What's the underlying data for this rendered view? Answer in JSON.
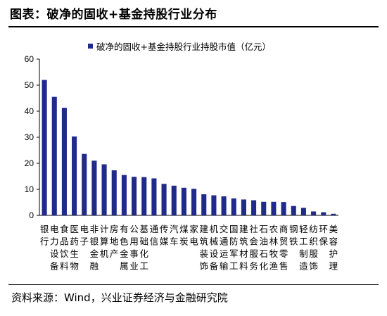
{
  "header": {
    "title": "图表：破净的固收+基金持股行业分布"
  },
  "footer": {
    "source": "资料来源：Wind，兴业证券经济与金融研究院"
  },
  "colors": {
    "bar": "#1f2a8a",
    "axis": "#000000",
    "rule": "#000000"
  },
  "chart_data": {
    "type": "bar",
    "series": [
      {
        "name": "破净的固收+基金持股行业持股市值（亿元）",
        "values": [
          52.0,
          45.5,
          41.3,
          30.3,
          23.6,
          21.0,
          19.6,
          17.3,
          15.5,
          14.8,
          14.7,
          14.2,
          12.1,
          11.4,
          10.6,
          10.2,
          8.1,
          7.7,
          7.3,
          6.5,
          6.1,
          5.8,
          5.2,
          5.2,
          5.1,
          3.6,
          2.9,
          1.5,
          1.2,
          0.6
        ]
      }
    ],
    "categories": [
      "银行",
      "电力设备",
      "食品饮料",
      "医药生物",
      "电子",
      "非银金融",
      "计算机",
      "房地产",
      "有色金属",
      "公用事业",
      "基础化工",
      "通信",
      "传媒",
      "汽车",
      "煤炭",
      "家电",
      "建筑装饰",
      "机械设备",
      "交通运输",
      "国防军工",
      "建筑材料",
      "社会服务",
      "石油石化",
      "农林牧渔",
      "商贸零售",
      "钢铁",
      "轻工制造",
      "纺织服饰",
      "环保",
      "美容护理"
    ],
    "yticks": [
      "0",
      "10",
      "20",
      "30",
      "40",
      "50",
      "60"
    ],
    "ylim": [
      0,
      60
    ],
    "legend_position": "top",
    "grid": false
  }
}
